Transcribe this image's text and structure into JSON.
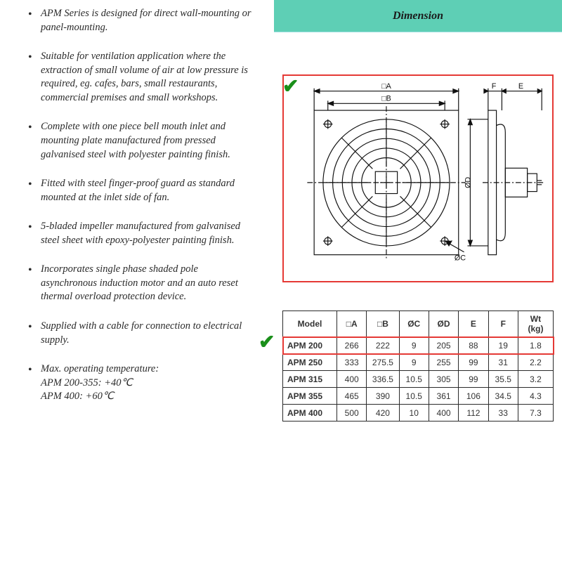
{
  "bullets": [
    "APM Series is designed for direct wall-mounting or panel-mounting.",
    "Suitable for ventilation application where the extraction of small volume of air at low pressure is required, eg. cafes, bars, small restaurants, commercial premises and small workshops.",
    "Complete with one piece bell mouth inlet and mounting plate manufactured from pressed galvanised steel with polyester painting finish.",
    "Fitted with steel finger-proof guard as standard mounted at the inlet side of fan.",
    "5-bladed impeller manufactured from galvanised steel sheet with epoxy-polyester painting finish.",
    "Incorporates single phase shaded pole asynchronous induction motor and an auto reset thermal overload protection device.",
    "Supplied with a cable for connection to electrical supply.",
    "Max. operating temperature:\nAPM 200-355: +40℃\nAPM 400: +60℃"
  ],
  "dimension_title": "Dimension",
  "diagram": {
    "border_color": "#e53935",
    "stroke": "#111111",
    "labels": {
      "A": "□A",
      "B": "□B",
      "C": "ØC",
      "D": "ØD",
      "E": "E",
      "F": "F"
    }
  },
  "table": {
    "columns": [
      "Model",
      "□A",
      "□B",
      "ØC",
      "ØD",
      "E",
      "F",
      "Wt (kg)"
    ],
    "rows": [
      [
        "APM 200",
        "266",
        "222",
        "9",
        "205",
        "88",
        "19",
        "1.8"
      ],
      [
        "APM 250",
        "333",
        "275.5",
        "9",
        "255",
        "99",
        "31",
        "2.2"
      ],
      [
        "APM 315",
        "400",
        "336.5",
        "10.5",
        "305",
        "99",
        "35.5",
        "3.2"
      ],
      [
        "APM 355",
        "465",
        "390",
        "10.5",
        "361",
        "106",
        "34.5",
        "4.3"
      ],
      [
        "APM 400",
        "500",
        "420",
        "10",
        "400",
        "112",
        "33",
        "7.3"
      ]
    ],
    "highlight_row_index": 0,
    "highlight_color": "#e53935",
    "col_widths_pct": [
      20,
      11,
      12,
      11,
      11,
      11,
      11,
      13
    ]
  },
  "colors": {
    "header_bg": "#5ecfb5",
    "check": "#1a8f1a"
  }
}
